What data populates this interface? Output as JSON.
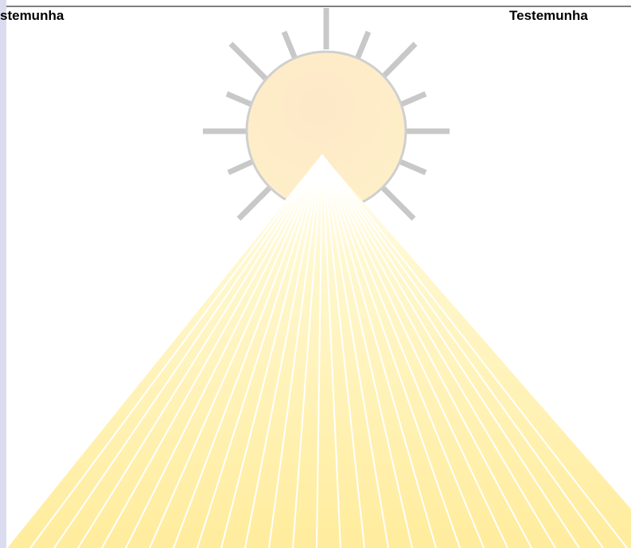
{
  "header": {
    "left_title": "stemunha",
    "right_title": "Testemunha"
  }
}
